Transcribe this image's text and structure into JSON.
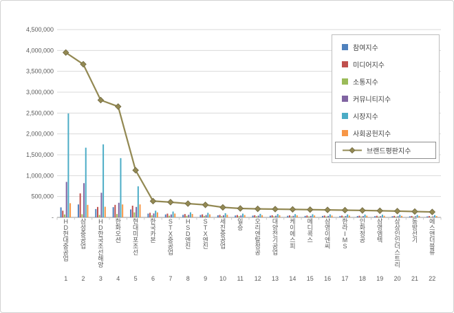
{
  "frame": {
    "background": "#ffffff",
    "border_color": "#d2d2d2"
  },
  "chart_data": {
    "type": "bar+line",
    "grid": true,
    "legend_position": "top-right-inside",
    "ylim": [
      0,
      4500000
    ],
    "ytick_step": 500000,
    "ytick_labels": [
      "-",
      "500,000",
      "1,000,000",
      "1,500,000",
      "2,000,000",
      "2,500,000",
      "3,000,000",
      "3,500,000",
      "4,000,000",
      "4,500,000"
    ],
    "categories": [
      "HD현대중공업",
      "삼성중공업",
      "HD한국조선해양",
      "한화오션",
      "현대미포조선",
      "한국카본",
      "STX중공업",
      "HSD엔진",
      "STX엔진",
      "세진중공업",
      "일승",
      "오리엔탈정공",
      "대양전기공업",
      "케이에스피",
      "메디콕스",
      "삼영이엔씨",
      "한라IMS",
      "인화정공",
      "삼영엠텍",
      "상상인인더스트리",
      "동방선기",
      "에스앤더블류"
    ],
    "category_indices": [
      "1",
      "2",
      "3",
      "4",
      "5",
      "6",
      "7",
      "8",
      "9",
      "10",
      "11",
      "12",
      "13",
      "14",
      "15",
      "16",
      "17",
      "18",
      "19",
      "20",
      "21",
      "22"
    ],
    "series": [
      {
        "name": "참여지수",
        "color": "#4F81BD",
        "values": [
          240000,
          310000,
          200000,
          245000,
          190000,
          90000,
          70000,
          60000,
          58000,
          50000,
          46000,
          43000,
          40000,
          38000,
          36000,
          35000,
          34000,
          32000,
          30000,
          28000,
          26000,
          24000
        ]
      },
      {
        "name": "미디어지수",
        "color": "#C0504D",
        "values": [
          160000,
          575000,
          250000,
          300000,
          280000,
          110000,
          90000,
          80000,
          72000,
          60000,
          56000,
          52000,
          50000,
          48000,
          45000,
          44000,
          42000,
          40000,
          38000,
          36000,
          34000,
          32000
        ]
      },
      {
        "name": "소통지수",
        "color": "#9BBB59",
        "values": [
          70000,
          75000,
          60000,
          80000,
          120000,
          50000,
          40000,
          38000,
          35000,
          30000,
          28000,
          26000,
          25000,
          24000,
          22000,
          22000,
          21000,
          20000,
          19000,
          18000,
          17000,
          16000
        ]
      },
      {
        "name": "커뮤니티지수",
        "color": "#8064A2",
        "values": [
          850000,
          820000,
          590000,
          350000,
          250000,
          95000,
          70000,
          62000,
          56000,
          50000,
          46000,
          42000,
          40000,
          38000,
          36000,
          35000,
          34000,
          32000,
          30000,
          28000,
          26000,
          24000
        ]
      },
      {
        "name": "시장지수",
        "color": "#4BACC6",
        "values": [
          2490000,
          1670000,
          1750000,
          1420000,
          745000,
          160000,
          140000,
          122000,
          110000,
          100000,
          90000,
          85000,
          80000,
          78000,
          75000,
          72000,
          70000,
          68000,
          65000,
          62000,
          58000,
          55000
        ]
      },
      {
        "name": "사회공헌지수",
        "color": "#F79646",
        "values": [
          340000,
          300000,
          255000,
          310000,
          310000,
          120000,
          92000,
          82000,
          72000,
          62000,
          56000,
          52000,
          50000,
          48000,
          46000,
          44000,
          42000,
          40000,
          38000,
          36000,
          34000,
          32000
        ]
      }
    ],
    "line_series": {
      "name": "브랜드평판지수",
      "color": "#938953",
      "marker_stroke": "#6F6840",
      "values": [
        3950000,
        3670000,
        2810000,
        2655000,
        1130000,
        390000,
        365000,
        330000,
        300000,
        240000,
        215000,
        205000,
        198000,
        192000,
        186000,
        180000,
        173000,
        166000,
        158000,
        150000,
        140000,
        130000
      ]
    },
    "colors": {
      "gridline": "#D9D9D9",
      "axis_line": "#9A9A9A",
      "tick": "#C9C9C9",
      "text": "#595959"
    }
  }
}
